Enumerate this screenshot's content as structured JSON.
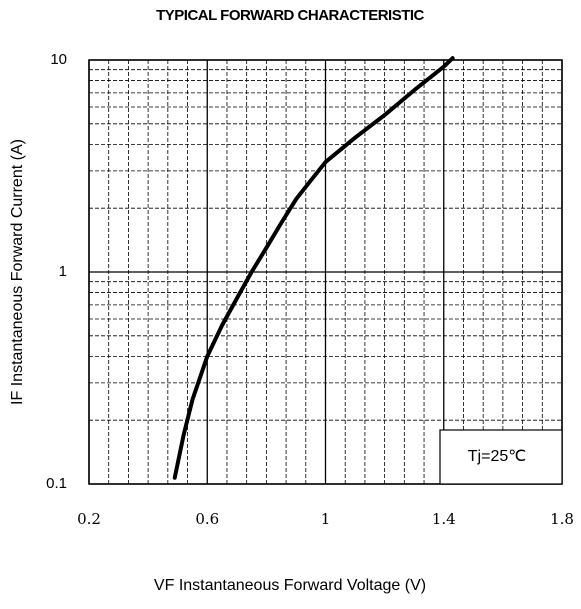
{
  "chart_data": {
    "type": "line",
    "title": "TYPICAL FORWARD CHARACTERISTIC",
    "x_label": "VF  Instantaneous Forward Voltage (V)",
    "y_label": "IF Instantaneous Forward Current (A)",
    "annotation": "Tj=25℃",
    "xlim": [
      0.2,
      1.8
    ],
    "xticks": [
      0.2,
      0.6,
      1,
      1.4,
      1.8
    ],
    "ylim": [
      0.1,
      10
    ],
    "yticks": [
      0.1,
      1,
      10
    ],
    "y_log": true,
    "grid": true,
    "minor_grid": true,
    "x_minor_divisions": 6,
    "series": [
      {
        "color": "#000000",
        "x": [
          0.49,
          0.52,
          0.55,
          0.6,
          0.65,
          0.7,
          0.75,
          0.8,
          0.85,
          0.9,
          0.95,
          1.0,
          1.1,
          1.2,
          1.3,
          1.4,
          1.43
        ],
        "values": [
          0.107,
          0.17,
          0.25,
          0.4,
          0.56,
          0.75,
          1.0,
          1.3,
          1.7,
          2.2,
          2.7,
          3.3,
          4.3,
          5.5,
          7.2,
          9.3,
          10.2
        ]
      }
    ]
  }
}
